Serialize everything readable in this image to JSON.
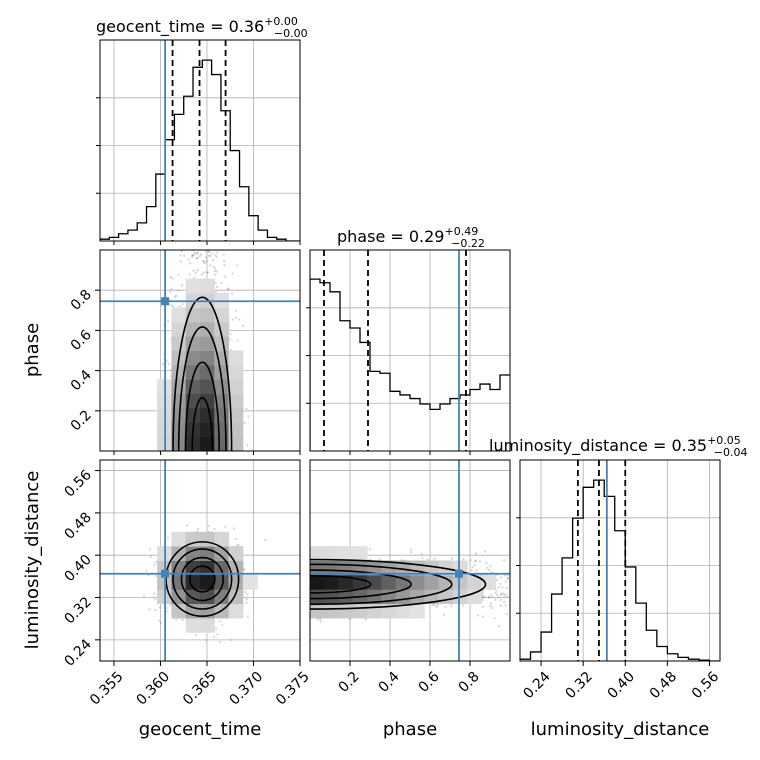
{
  "chart_data": {
    "type": "corner",
    "parameters": [
      {
        "name": "geocent_time",
        "label": "geocent_time",
        "range": [
          0.3535,
          0.375
        ],
        "ticks": [
          "0.355",
          "0.360",
          "0.365",
          "0.370",
          "0.375"
        ],
        "tick_values": [
          0.355,
          0.36,
          0.365,
          0.37,
          0.375
        ],
        "truth": 0.3605,
        "quantiles": [
          0.3613,
          0.3642,
          0.367
        ],
        "title_main": "geocent_time = 0.36",
        "title_sup": "+0.00",
        "title_sub": "−0.00"
      },
      {
        "name": "phase",
        "label": "phase",
        "range": [
          0.0,
          1.0
        ],
        "ticks": [
          "0.2",
          "0.4",
          "0.6",
          "0.8"
        ],
        "tick_values": [
          0.2,
          0.4,
          0.6,
          0.8
        ],
        "truth": 0.745,
        "quantiles": [
          0.07,
          0.29,
          0.78
        ],
        "title_main": "phase = 0.29",
        "title_sup": "+0.49",
        "title_sub": "−0.22"
      },
      {
        "name": "luminosity_distance",
        "label": "luminosity_distance",
        "range": [
          0.2,
          0.58
        ],
        "ticks": [
          "0.24",
          "0.32",
          "0.40",
          "0.48",
          "0.56"
        ],
        "tick_values": [
          0.24,
          0.32,
          0.4,
          0.48,
          0.56
        ],
        "truth": 0.365,
        "quantiles": [
          0.31,
          0.35,
          0.4
        ],
        "title_main": "luminosity_distance = 0.35",
        "title_sup": "+0.05",
        "title_sub": "−0.04"
      }
    ],
    "histograms": {
      "geocent_time": {
        "bin_edges": [
          0.3535,
          0.3545,
          0.3555,
          0.3565,
          0.3575,
          0.3585,
          0.3595,
          0.3605,
          0.3615,
          0.3625,
          0.3635,
          0.3645,
          0.3655,
          0.3665,
          0.3675,
          0.3685,
          0.3695,
          0.3705,
          0.3715,
          0.3725,
          0.3735,
          0.375
        ],
        "counts": [
          0.01,
          0.02,
          0.04,
          0.06,
          0.1,
          0.19,
          0.37,
          0.56,
          0.7,
          0.8,
          0.96,
          1.0,
          0.92,
          0.72,
          0.5,
          0.3,
          0.14,
          0.06,
          0.02,
          0.01,
          0.0
        ]
      },
      "phase": {
        "bin_edges": [
          0.0,
          0.05,
          0.1,
          0.15,
          0.2,
          0.25,
          0.3,
          0.35,
          0.4,
          0.45,
          0.5,
          0.55,
          0.6,
          0.65,
          0.7,
          0.75,
          0.8,
          0.85,
          0.9,
          0.95,
          1.0
        ],
        "counts": [
          0.95,
          0.93,
          0.88,
          0.72,
          0.68,
          0.6,
          0.44,
          0.43,
          0.33,
          0.31,
          0.29,
          0.26,
          0.23,
          0.26,
          0.29,
          0.31,
          0.34,
          0.37,
          0.34,
          0.42
        ]
      },
      "luminosity_distance": {
        "bin_edges": [
          0.2,
          0.22,
          0.24,
          0.26,
          0.28,
          0.3,
          0.32,
          0.34,
          0.36,
          0.38,
          0.4,
          0.42,
          0.44,
          0.46,
          0.48,
          0.5,
          0.52,
          0.54,
          0.56,
          0.58
        ],
        "counts": [
          0.01,
          0.05,
          0.16,
          0.37,
          0.57,
          0.79,
          0.96,
          1.0,
          0.91,
          0.72,
          0.52,
          0.32,
          0.17,
          0.08,
          0.04,
          0.02,
          0.01,
          0.005,
          0.0
        ]
      }
    },
    "density_2d": [
      {
        "x": "geocent_time",
        "y": "phase",
        "center": [
          0.3645,
          0.08
        ],
        "spread": [
          0.0022,
          0.3
        ]
      },
      {
        "x": "geocent_time",
        "y": "luminosity_distance",
        "center": [
          0.3645,
          0.355
        ],
        "spread": [
          0.0025,
          0.045
        ]
      },
      {
        "x": "phase",
        "y": "luminosity_distance",
        "center": [
          0.05,
          0.345
        ],
        "spread": [
          0.55,
          0.03
        ]
      }
    ],
    "colors": {
      "truth": "#4682b4",
      "hist": "#000000",
      "grid": "#b0b0b0",
      "points": "#808080"
    },
    "grid": true,
    "truth_marker": "square"
  }
}
